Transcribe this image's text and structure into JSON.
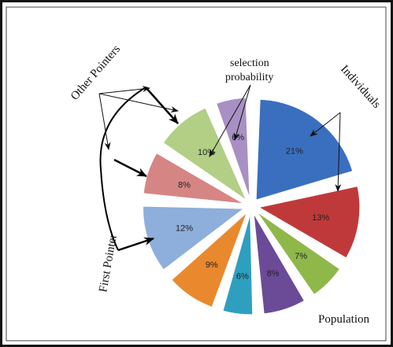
{
  "diagram": {
    "labels": {
      "other_pointers": "Other Pointers",
      "selection_probability_line1": "selection",
      "selection_probability_line2": "probability",
      "individuals": "Individuals",
      "first_pointer": "First Pointer",
      "population": "Population"
    },
    "slices": [
      {
        "id": "s21",
        "value": 21,
        "label": "21%",
        "color": "#3a6fbf"
      },
      {
        "id": "s13",
        "value": 13,
        "label": "13%",
        "color": "#c0393a"
      },
      {
        "id": "s7",
        "value": 7,
        "label": "7%",
        "color": "#8fb84a"
      },
      {
        "id": "s8a",
        "value": 8,
        "label": "8%",
        "color": "#6b4b97"
      },
      {
        "id": "s6a",
        "value": 6,
        "label": "6%",
        "color": "#2f9fbf"
      },
      {
        "id": "s9",
        "value": 9,
        "label": "9%",
        "color": "#e9892d"
      },
      {
        "id": "s12",
        "value": 12,
        "label": "12%",
        "color": "#8eaedb"
      },
      {
        "id": "s8b",
        "value": 8,
        "label": "8%",
        "color": "#d68585"
      },
      {
        "id": "s10",
        "value": 10,
        "label": "10%",
        "color": "#b2cf85"
      },
      {
        "id": "s6b",
        "value": 6,
        "label": "6%",
        "color": "#a890c4"
      }
    ]
  }
}
